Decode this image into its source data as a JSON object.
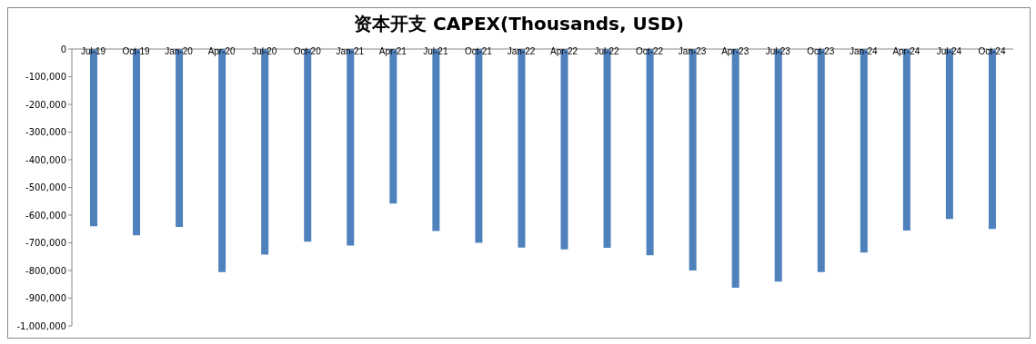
{
  "chart_data": {
    "type": "bar",
    "title": "资本开支 CAPEX(Thousands, USD)",
    "categories": [
      "Jul-19",
      "Oct-19",
      "Jan-20",
      "Apr-20",
      "Jul-20",
      "Oct-20",
      "Jan-21",
      "Apr-21",
      "Jul-21",
      "Oct-21",
      "Jan-22",
      "Apr-22",
      "Jul-22",
      "Oct-22",
      "Jan-23",
      "Apr-23",
      "Jul-23",
      "Oct-23",
      "Jan-24",
      "Apr-24",
      "Jul-24",
      "Oct-24"
    ],
    "values": [
      -640000,
      -673000,
      -643000,
      -806000,
      -743000,
      -696000,
      -710000,
      -558000,
      -657000,
      -700000,
      -717000,
      -724000,
      -718000,
      -745000,
      -800000,
      -862000,
      -840000,
      -806000,
      -735000,
      -656000,
      -614000,
      -650000
    ],
    "color": "#4f81bd",
    "ylim": [
      -1000000,
      0
    ],
    "yticks": [
      {
        "value": -1000000,
        "label": "-1,000,000"
      },
      {
        "value": -900000,
        "label": "-900,000"
      },
      {
        "value": -800000,
        "label": "-800,000"
      },
      {
        "value": -700000,
        "label": "-700,000"
      },
      {
        "value": -600000,
        "label": "-600,000"
      },
      {
        "value": -500000,
        "label": "-500,000"
      },
      {
        "value": -400000,
        "label": "-400,000"
      },
      {
        "value": -300000,
        "label": "-300,000"
      },
      {
        "value": -200000,
        "label": "-200,000"
      },
      {
        "value": -100000,
        "label": "-100,000"
      },
      0
    ],
    "grid": false,
    "legend": false
  }
}
